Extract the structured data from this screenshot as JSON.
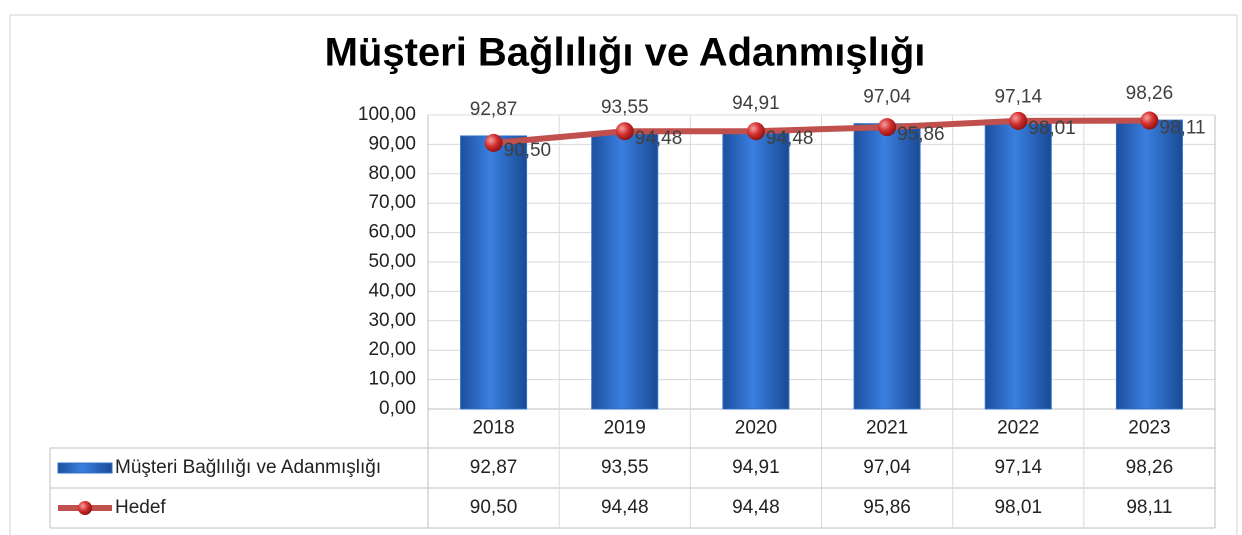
{
  "chart_data": {
    "type": "bar",
    "title": "Müşteri Bağlılığı ve Adanmışlığı",
    "categories": [
      "2018",
      "2019",
      "2020",
      "2021",
      "2022",
      "2023"
    ],
    "series": [
      {
        "name": "Müşteri Bağlılığı ve Adanmışlığı",
        "type": "bar",
        "color": "#2f6fc9",
        "values": [
          92.87,
          93.55,
          94.91,
          97.04,
          97.14,
          98.26
        ],
        "value_labels": [
          "92,87",
          "93,55",
          "94,91",
          "97,04",
          "97,14",
          "98,26"
        ]
      },
      {
        "name": "Hedef",
        "type": "line",
        "color": "#c0504d",
        "values": [
          90.5,
          94.48,
          94.48,
          95.86,
          98.01,
          98.11
        ],
        "value_labels": [
          "90,50",
          "94,48",
          "94,48",
          "95,86",
          "98,01",
          "98,11"
        ]
      }
    ],
    "ylim": [
      0,
      100
    ],
    "yticks": [
      {
        "value": 0,
        "label": "0,00"
      },
      {
        "value": 10,
        "label": "10,00"
      },
      {
        "value": 20,
        "label": "20,00"
      },
      {
        "value": 30,
        "label": "30,00"
      },
      {
        "value": 40,
        "label": "40,00"
      },
      {
        "value": 50,
        "label": "50,00"
      },
      {
        "value": 60,
        "label": "60,00"
      },
      {
        "value": 70,
        "label": "70,00"
      },
      {
        "value": 80,
        "label": "80,00"
      },
      {
        "value": 90,
        "label": "90,00"
      },
      {
        "value": 100,
        "label": "100,00"
      }
    ],
    "grid": true
  }
}
